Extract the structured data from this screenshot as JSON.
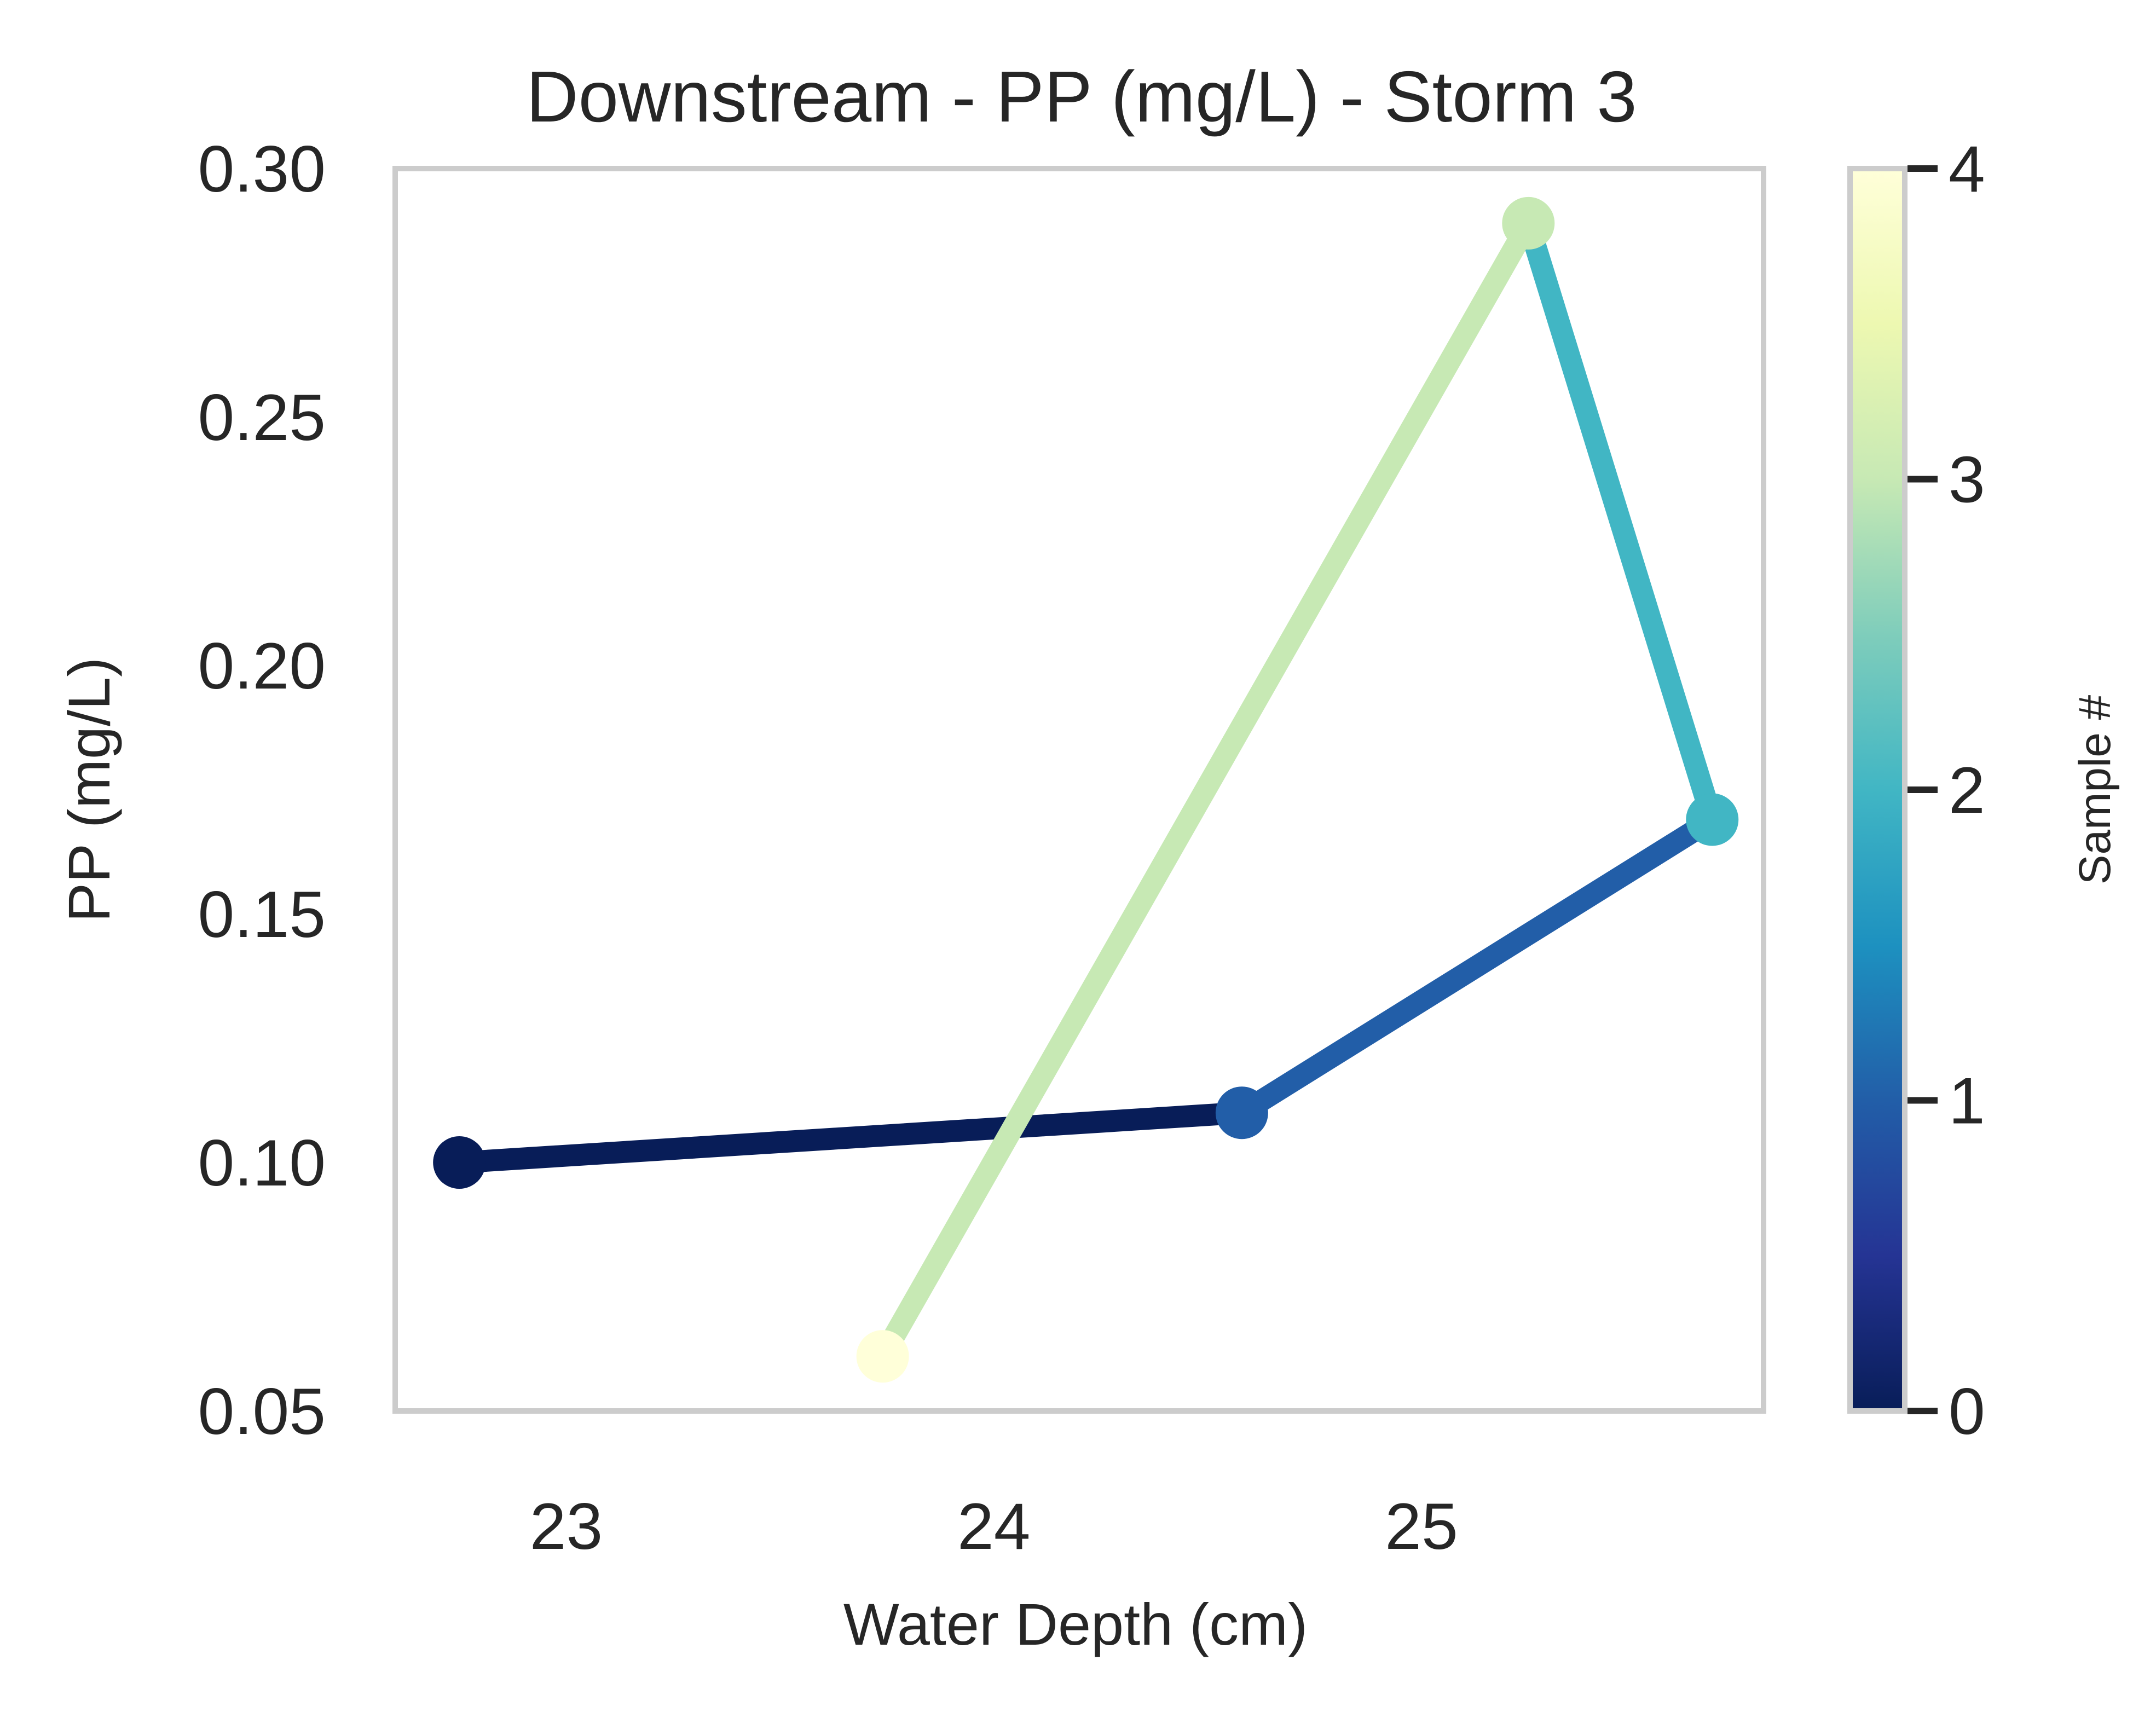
{
  "chart_data": {
    "type": "line",
    "title": "Downstream - PP (mg/L) - Storm 3",
    "xlabel": "Water Depth (cm)",
    "ylabel": "PP (mg/L)",
    "xlim": [
      22.6,
      25.8
    ],
    "ylim": [
      0.05,
      0.3
    ],
    "xticks": [
      "23",
      "24",
      "25"
    ],
    "xtick_values": [
      23,
      24,
      25
    ],
    "yticks": [
      "0.05",
      "0.10",
      "0.15",
      "0.20",
      "0.25",
      "0.30"
    ],
    "ytick_values": [
      0.05,
      0.1,
      0.15,
      0.2,
      0.25,
      0.3
    ],
    "grid": false,
    "points": [
      {
        "sample": 0,
        "x": 22.75,
        "y": 0.1
      },
      {
        "sample": 1,
        "x": 24.58,
        "y": 0.11
      },
      {
        "sample": 2,
        "x": 25.68,
        "y": 0.169
      },
      {
        "sample": 3,
        "x": 25.25,
        "y": 0.289
      },
      {
        "sample": 4,
        "x": 23.74,
        "y": 0.061
      }
    ],
    "colorbar": {
      "label": "Sample #",
      "range": [
        0,
        4
      ],
      "ticks": [
        "0",
        "1",
        "2",
        "3",
        "4"
      ],
      "tick_values": [
        0,
        1,
        2,
        3,
        4
      ],
      "colormap": "YlGnBu_r",
      "stops": [
        "#081d58",
        "#253494",
        "#225ea8",
        "#1d91c0",
        "#41b6c4",
        "#7fcdbb",
        "#c7e9b4",
        "#edf8b1",
        "#ffffd9"
      ]
    }
  }
}
